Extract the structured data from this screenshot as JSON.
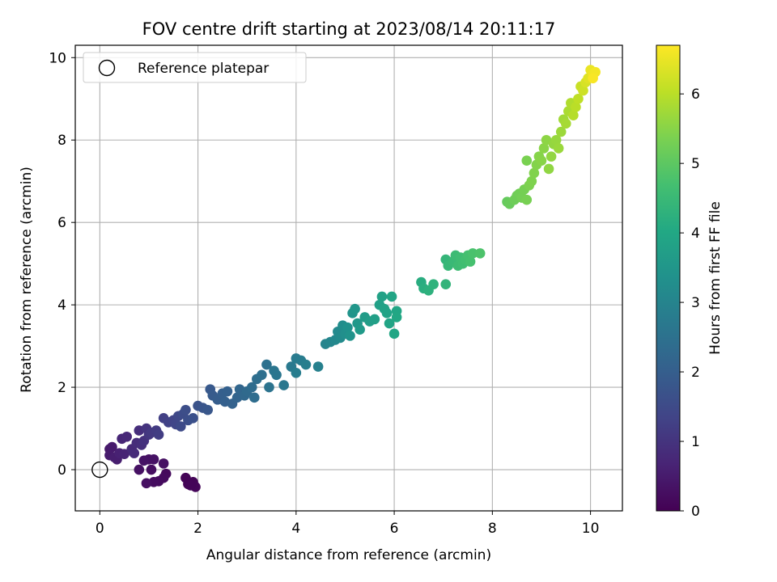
{
  "chart_data": {
    "type": "scatter",
    "title": "FOV centre drift starting at 2023/08/14 20:11:17",
    "xlabel": "Angular distance from reference (arcmin)",
    "ylabel": "Rotation from reference (arcmin)",
    "xlim": [
      -0.5,
      10.65
    ],
    "ylim": [
      -1.0,
      10.3
    ],
    "xticks": [
      0,
      2,
      4,
      6,
      8,
      10
    ],
    "yticks": [
      0,
      2,
      4,
      6,
      8,
      10
    ],
    "grid": true,
    "legend": {
      "position": "top-left",
      "entries": [
        "Reference platepar"
      ]
    },
    "reference_point": {
      "x": 0,
      "y": 0,
      "label": "Reference platepar"
    },
    "colorbar": {
      "label": "Hours from first FF file",
      "colormap": "viridis",
      "range": [
        0,
        6.7
      ],
      "ticks": [
        0,
        1,
        2,
        3,
        4,
        5,
        6
      ]
    },
    "points": [
      [
        1.75,
        -0.2,
        0.05
      ],
      [
        1.8,
        -0.35,
        0.05
      ],
      [
        1.9,
        -0.3,
        0.07
      ],
      [
        1.95,
        -0.42,
        0.1
      ],
      [
        1.85,
        -0.38,
        0.08
      ],
      [
        1.35,
        -0.1,
        0.15
      ],
      [
        1.3,
        -0.2,
        0.18
      ],
      [
        1.2,
        -0.28,
        0.2
      ],
      [
        1.1,
        -0.3,
        0.22
      ],
      [
        1.3,
        0.15,
        0.3
      ],
      [
        1.05,
        0.0,
        0.25
      ],
      [
        1.0,
        0.25,
        0.3
      ],
      [
        0.9,
        0.22,
        0.35
      ],
      [
        0.8,
        0.0,
        0.3
      ],
      [
        0.95,
        -0.33,
        0.28
      ],
      [
        1.1,
        0.25,
        0.32
      ],
      [
        0.2,
        0.5,
        0.45
      ],
      [
        0.25,
        0.55,
        0.48
      ],
      [
        0.2,
        0.35,
        0.5
      ],
      [
        0.3,
        0.3,
        0.55
      ],
      [
        0.35,
        0.25,
        0.55
      ],
      [
        0.4,
        0.4,
        0.62
      ],
      [
        0.5,
        0.38,
        0.68
      ],
      [
        0.45,
        0.75,
        0.72
      ],
      [
        0.55,
        0.8,
        0.75
      ],
      [
        0.65,
        0.5,
        0.8
      ],
      [
        0.7,
        0.4,
        0.82
      ],
      [
        0.75,
        0.65,
        0.85
      ],
      [
        0.8,
        0.95,
        0.88
      ],
      [
        0.85,
        0.6,
        0.9
      ],
      [
        0.9,
        0.7,
        0.95
      ],
      [
        0.95,
        1.0,
        1.0
      ],
      [
        1.0,
        0.85,
        1.05
      ],
      [
        1.05,
        0.9,
        1.1
      ],
      [
        1.15,
        0.95,
        1.15
      ],
      [
        1.2,
        0.85,
        1.2
      ],
      [
        1.3,
        1.25,
        1.25
      ],
      [
        1.4,
        1.15,
        1.3
      ],
      [
        1.5,
        1.2,
        1.35
      ],
      [
        1.55,
        1.1,
        1.4
      ],
      [
        1.6,
        1.3,
        1.45
      ],
      [
        1.65,
        1.05,
        1.5
      ],
      [
        1.7,
        1.35,
        1.55
      ],
      [
        1.75,
        1.45,
        1.58
      ],
      [
        1.8,
        1.2,
        1.6
      ],
      [
        1.9,
        1.25,
        1.65
      ],
      [
        2.0,
        1.55,
        1.7
      ],
      [
        2.1,
        1.5,
        1.75
      ],
      [
        2.2,
        1.45,
        1.8
      ],
      [
        2.25,
        1.95,
        1.85
      ],
      [
        2.3,
        1.8,
        1.9
      ],
      [
        2.4,
        1.7,
        1.95
      ],
      [
        2.5,
        1.85,
        2.0
      ],
      [
        2.55,
        1.65,
        2.05
      ],
      [
        2.6,
        1.9,
        2.05
      ],
      [
        2.7,
        1.6,
        2.1
      ],
      [
        2.8,
        1.75,
        2.15
      ],
      [
        2.85,
        1.95,
        2.2
      ],
      [
        2.95,
        1.8,
        2.25
      ],
      [
        3.0,
        1.9,
        2.3
      ],
      [
        3.1,
        2.0,
        2.35
      ],
      [
        3.15,
        1.75,
        2.38
      ],
      [
        3.2,
        2.2,
        2.4
      ],
      [
        3.3,
        2.3,
        2.45
      ],
      [
        3.4,
        2.55,
        2.5
      ],
      [
        3.45,
        2.0,
        2.55
      ],
      [
        3.55,
        2.4,
        2.6
      ],
      [
        3.6,
        2.3,
        2.62
      ],
      [
        3.75,
        2.05,
        2.65
      ],
      [
        3.9,
        2.5,
        2.7
      ],
      [
        4.0,
        2.7,
        2.75
      ],
      [
        4.1,
        2.65,
        2.8
      ],
      [
        4.0,
        2.35,
        2.82
      ],
      [
        4.2,
        2.55,
        2.85
      ],
      [
        4.45,
        2.5,
        2.9
      ],
      [
        4.6,
        3.05,
        3.0
      ],
      [
        4.7,
        3.1,
        3.05
      ],
      [
        4.8,
        3.15,
        3.1
      ],
      [
        4.85,
        3.35,
        3.15
      ],
      [
        4.9,
        3.2,
        3.2
      ],
      [
        4.95,
        3.5,
        3.25
      ],
      [
        5.0,
        3.3,
        3.3
      ],
      [
        5.05,
        3.45,
        3.35
      ],
      [
        5.1,
        3.25,
        3.4
      ],
      [
        5.15,
        3.8,
        3.45
      ],
      [
        5.2,
        3.9,
        3.5
      ],
      [
        5.25,
        3.55,
        3.55
      ],
      [
        5.3,
        3.4,
        3.6
      ],
      [
        5.4,
        3.7,
        3.65
      ],
      [
        5.5,
        3.6,
        3.7
      ],
      [
        5.6,
        3.65,
        3.75
      ],
      [
        5.7,
        4.0,
        3.8
      ],
      [
        5.75,
        4.2,
        3.82
      ],
      [
        5.8,
        3.9,
        3.85
      ],
      [
        5.85,
        3.8,
        3.87
      ],
      [
        5.9,
        3.55,
        3.9
      ],
      [
        5.95,
        4.2,
        3.92
      ],
      [
        6.0,
        3.3,
        3.95
      ],
      [
        6.05,
        3.85,
        3.97
      ],
      [
        6.05,
        3.7,
        4.0
      ],
      [
        6.55,
        4.55,
        4.15
      ],
      [
        6.6,
        4.4,
        4.2
      ],
      [
        6.7,
        4.35,
        4.25
      ],
      [
        6.8,
        4.5,
        4.3
      ],
      [
        7.05,
        4.5,
        4.35
      ],
      [
        7.05,
        5.1,
        4.4
      ],
      [
        7.1,
        4.95,
        4.45
      ],
      [
        7.2,
        5.05,
        4.5
      ],
      [
        7.25,
        5.2,
        4.55
      ],
      [
        7.3,
        4.95,
        4.58
      ],
      [
        7.35,
        5.15,
        4.6
      ],
      [
        7.4,
        5.0,
        4.62
      ],
      [
        7.45,
        5.1,
        4.65
      ],
      [
        7.5,
        5.2,
        4.7
      ],
      [
        7.55,
        5.05,
        4.72
      ],
      [
        7.6,
        5.25,
        4.75
      ],
      [
        7.75,
        5.25,
        4.8
      ],
      [
        8.3,
        6.5,
        5.1
      ],
      [
        8.35,
        6.45,
        5.15
      ],
      [
        8.45,
        6.55,
        5.2
      ],
      [
        8.5,
        6.65,
        5.22
      ],
      [
        8.55,
        6.7,
        5.25
      ],
      [
        8.6,
        6.6,
        5.28
      ],
      [
        8.65,
        6.8,
        5.3
      ],
      [
        8.7,
        6.55,
        5.32
      ],
      [
        8.7,
        7.5,
        5.35
      ],
      [
        8.75,
        6.9,
        5.38
      ],
      [
        8.8,
        7.0,
        5.4
      ],
      [
        8.85,
        7.2,
        5.42
      ],
      [
        8.9,
        7.4,
        5.45
      ],
      [
        8.95,
        7.6,
        5.48
      ],
      [
        9.0,
        7.5,
        5.5
      ],
      [
        9.05,
        7.8,
        5.52
      ],
      [
        9.1,
        8.0,
        5.55
      ],
      [
        9.15,
        7.3,
        5.58
      ],
      [
        9.2,
        7.6,
        5.6
      ],
      [
        9.25,
        7.9,
        5.62
      ],
      [
        9.3,
        8.0,
        5.65
      ],
      [
        9.35,
        7.8,
        5.68
      ],
      [
        9.4,
        8.2,
        5.7
      ],
      [
        9.45,
        8.5,
        5.75
      ],
      [
        9.5,
        8.4,
        5.8
      ],
      [
        9.55,
        8.7,
        5.85
      ],
      [
        9.6,
        8.9,
        5.9
      ],
      [
        9.65,
        8.6,
        5.95
      ],
      [
        9.7,
        8.8,
        6.0
      ],
      [
        9.75,
        9.0,
        6.05
      ],
      [
        9.8,
        9.3,
        6.15
      ],
      [
        9.85,
        9.2,
        6.2
      ],
      [
        9.9,
        9.4,
        6.3
      ],
      [
        9.95,
        9.5,
        6.4
      ],
      [
        10.0,
        9.7,
        6.5
      ],
      [
        10.05,
        9.6,
        6.55
      ],
      [
        10.1,
        9.65,
        6.6
      ],
      [
        10.05,
        9.5,
        6.65
      ]
    ]
  }
}
